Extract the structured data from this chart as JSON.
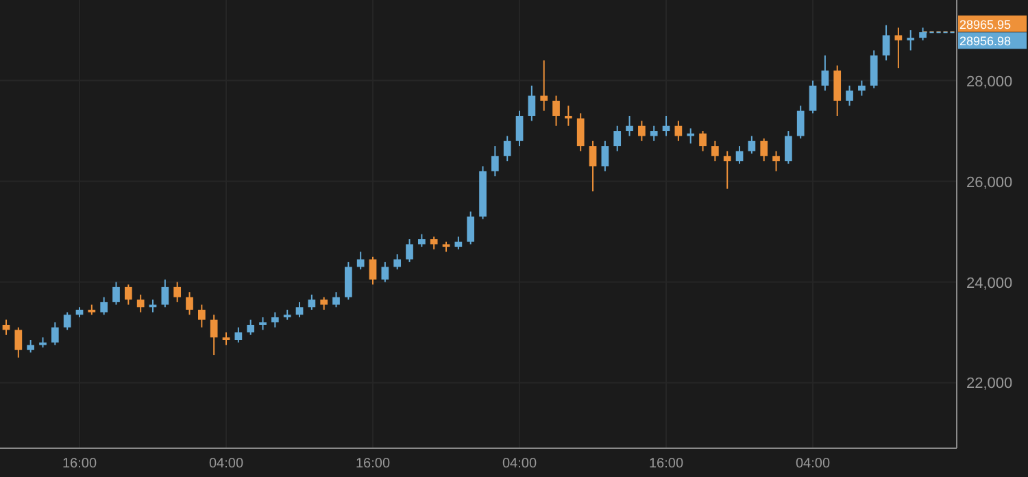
{
  "chart_data": {
    "type": "candlestick",
    "categories": [
      null,
      null,
      null,
      null,
      null,
      null,
      "16:00",
      null,
      null,
      null,
      null,
      null,
      null,
      null,
      null,
      null,
      null,
      null,
      "04:00",
      null,
      null,
      null,
      null,
      null,
      null,
      null,
      null,
      null,
      null,
      null,
      "16:00",
      null,
      null,
      null,
      null,
      null,
      null,
      null,
      null,
      null,
      null,
      null,
      "04:00",
      null,
      null,
      null,
      null,
      null,
      null,
      null,
      null,
      null,
      null,
      null,
      "16:00",
      null,
      null,
      null,
      null,
      null,
      null,
      null,
      null,
      null,
      null,
      null,
      "04:00",
      null,
      null,
      null,
      null,
      null,
      null,
      null,
      null,
      null
    ],
    "ohlc": [
      [
        23150,
        23250,
        22950,
        23050
      ],
      [
        23050,
        23100,
        22500,
        22650
      ],
      [
        22650,
        22850,
        22600,
        22750
      ],
      [
        22750,
        22900,
        22700,
        22800
      ],
      [
        22800,
        23200,
        22750,
        23100
      ],
      [
        23100,
        23400,
        23050,
        23350
      ],
      [
        23350,
        23500,
        23300,
        23450
      ],
      [
        23450,
        23550,
        23350,
        23400
      ],
      [
        23400,
        23700,
        23350,
        23600
      ],
      [
        23600,
        24000,
        23550,
        23900
      ],
      [
        23900,
        23950,
        23550,
        23650
      ],
      [
        23650,
        23750,
        23400,
        23500
      ],
      [
        23500,
        23650,
        23400,
        23550
      ],
      [
        23550,
        24050,
        23500,
        23900
      ],
      [
        23900,
        24000,
        23600,
        23700
      ],
      [
        23700,
        23800,
        23350,
        23450
      ],
      [
        23450,
        23550,
        23100,
        23250
      ],
      [
        23250,
        23350,
        22550,
        22900
      ],
      [
        22900,
        23000,
        22750,
        22850
      ],
      [
        22850,
        23100,
        22800,
        23000
      ],
      [
        23000,
        23250,
        22950,
        23150
      ],
      [
        23150,
        23300,
        23050,
        23200
      ],
      [
        23200,
        23400,
        23100,
        23300
      ],
      [
        23300,
        23450,
        23250,
        23350
      ],
      [
        23350,
        23600,
        23300,
        23500
      ],
      [
        23500,
        23750,
        23450,
        23650
      ],
      [
        23650,
        23700,
        23450,
        23550
      ],
      [
        23550,
        23800,
        23500,
        23700
      ],
      [
        23700,
        24400,
        23650,
        24300
      ],
      [
        24300,
        24600,
        24250,
        24450
      ],
      [
        24450,
        24500,
        23950,
        24050
      ],
      [
        24050,
        24400,
        24000,
        24300
      ],
      [
        24300,
        24550,
        24250,
        24450
      ],
      [
        24450,
        24850,
        24400,
        24750
      ],
      [
        24750,
        24950,
        24700,
        24850
      ],
      [
        24850,
        24900,
        24650,
        24750
      ],
      [
        24750,
        24800,
        24600,
        24700
      ],
      [
        24700,
        24900,
        24650,
        24800
      ],
      [
        24800,
        25400,
        24750,
        25300
      ],
      [
        25300,
        26300,
        25250,
        26200
      ],
      [
        26200,
        26700,
        26100,
        26500
      ],
      [
        26500,
        26900,
        26400,
        26800
      ],
      [
        26800,
        27400,
        26700,
        27300
      ],
      [
        27300,
        27900,
        27200,
        27700
      ],
      [
        27700,
        28400,
        27400,
        27600
      ],
      [
        27600,
        27700,
        27100,
        27300
      ],
      [
        27300,
        27500,
        27100,
        27250
      ],
      [
        27250,
        27350,
        26600,
        26700
      ],
      [
        26700,
        26800,
        25800,
        26300
      ],
      [
        26300,
        26800,
        26200,
        26700
      ],
      [
        26700,
        27100,
        26600,
        27000
      ],
      [
        27000,
        27300,
        26900,
        27100
      ],
      [
        27100,
        27200,
        26800,
        26900
      ],
      [
        26900,
        27100,
        26800,
        27000
      ],
      [
        27000,
        27300,
        26900,
        27100
      ],
      [
        27100,
        27200,
        26800,
        26900
      ],
      [
        26900,
        27050,
        26750,
        26950
      ],
      [
        26950,
        27000,
        26600,
        26700
      ],
      [
        26700,
        26800,
        26400,
        26500
      ],
      [
        26500,
        26600,
        25850,
        26400
      ],
      [
        26400,
        26700,
        26350,
        26600
      ],
      [
        26600,
        26900,
        26550,
        26800
      ],
      [
        26800,
        26850,
        26400,
        26500
      ],
      [
        26500,
        26600,
        26200,
        26400
      ],
      [
        26400,
        27000,
        26350,
        26900
      ],
      [
        26900,
        27500,
        26850,
        27400
      ],
      [
        27400,
        28000,
        27350,
        27900
      ],
      [
        27900,
        28500,
        27800,
        28200
      ],
      [
        28200,
        28300,
        27300,
        27600
      ],
      [
        27600,
        27900,
        27500,
        27800
      ],
      [
        27800,
        28000,
        27700,
        27900
      ],
      [
        27900,
        28600,
        27850,
        28500
      ],
      [
        28500,
        29100,
        28400,
        28900
      ],
      [
        28900,
        29050,
        28250,
        28800
      ],
      [
        28800,
        29000,
        28600,
        28850
      ],
      [
        28850,
        29050,
        28800,
        28960
      ]
    ],
    "colors": [
      "#ee9139",
      "#ee9139",
      "#62a9d6",
      "#62a9d6",
      "#62a9d6",
      "#62a9d6",
      "#62a9d6",
      "#ee9139",
      "#62a9d6",
      "#62a9d6",
      "#ee9139",
      "#ee9139",
      "#62a9d6",
      "#62a9d6",
      "#ee9139",
      "#ee9139",
      "#ee9139",
      "#ee9139",
      "#ee9139",
      "#62a9d6",
      "#62a9d6",
      "#62a9d6",
      "#62a9d6",
      "#62a9d6",
      "#62a9d6",
      "#62a9d6",
      "#ee9139",
      "#62a9d6",
      "#62a9d6",
      "#62a9d6",
      "#ee9139",
      "#62a9d6",
      "#62a9d6",
      "#62a9d6",
      "#62a9d6",
      "#ee9139",
      "#ee9139",
      "#62a9d6",
      "#62a9d6",
      "#62a9d6",
      "#62a9d6",
      "#62a9d6",
      "#62a9d6",
      "#62a9d6",
      "#ee9139",
      "#ee9139",
      "#ee9139",
      "#ee9139",
      "#ee9139",
      "#62a9d6",
      "#62a9d6",
      "#62a9d6",
      "#ee9139",
      "#62a9d6",
      "#62a9d6",
      "#ee9139",
      "#62a9d6",
      "#ee9139",
      "#ee9139",
      "#ee9139",
      "#62a9d6",
      "#62a9d6",
      "#ee9139",
      "#ee9139",
      "#62a9d6",
      "#62a9d6",
      "#62a9d6",
      "#62a9d6",
      "#ee9139",
      "#62a9d6",
      "#62a9d6",
      "#62a9d6",
      "#62a9d6",
      "#ee9139",
      "#62a9d6",
      "#62a9d6"
    ],
    "ylim": [
      20700,
      29600
    ],
    "yticks": [
      {
        "value": 22000,
        "label": "22,000"
      },
      {
        "value": 24000,
        "label": "24,000"
      },
      {
        "value": 26000,
        "label": "26,000"
      },
      {
        "value": 28000,
        "label": "28,000"
      }
    ],
    "grid": true,
    "ref_lines": [
      {
        "axis": "y",
        "value": 28965.95,
        "label": "28965.95",
        "color": "#ee9139",
        "line_style": "dashed"
      },
      {
        "axis": "y",
        "value": 28956.98,
        "label": "28956.98",
        "color": "#62a9d6",
        "line_style": "dashed"
      }
    ]
  }
}
